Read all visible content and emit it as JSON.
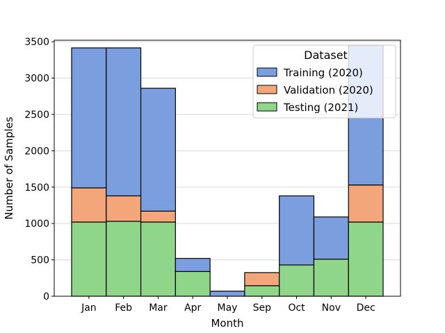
{
  "chart_data": {
    "type": "bar",
    "stacked": true,
    "categories": [
      "Jan",
      "Feb",
      "Mar",
      "Apr",
      "May",
      "Sep",
      "Oct",
      "Nov",
      "Dec"
    ],
    "series": [
      {
        "name": "Testing (2021)",
        "color": "#8fd68a",
        "values": [
          1020,
          1030,
          1020,
          340,
          0,
          145,
          430,
          510,
          1020
        ]
      },
      {
        "name": "Validation (2020)",
        "color": "#f2a679",
        "values": [
          470,
          350,
          150,
          0,
          0,
          180,
          0,
          0,
          510
        ]
      },
      {
        "name": "Training (2020)",
        "color": "#7a9ede",
        "values": [
          1925,
          2035,
          1690,
          180,
          70,
          0,
          950,
          580,
          1920
        ]
      }
    ],
    "xlabel": "Month",
    "ylabel": "Number of Samples",
    "ylim": [
      0,
      3520
    ],
    "yticks": [
      0,
      500,
      1000,
      1500,
      2000,
      2500,
      3000,
      3500
    ],
    "grid": "horizontal",
    "legend": {
      "title": "Dataset",
      "placement": "top-right",
      "order": [
        "Training (2020)",
        "Validation (2020)",
        "Testing (2021)"
      ]
    }
  }
}
